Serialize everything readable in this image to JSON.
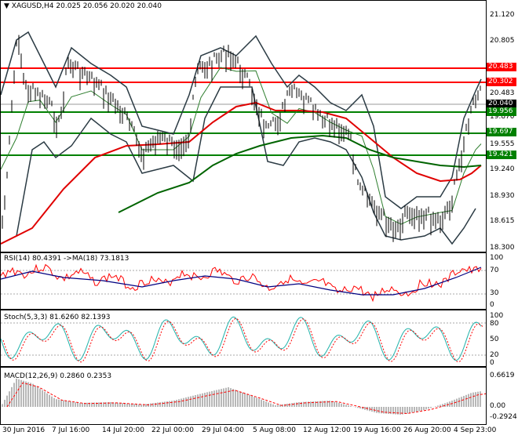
{
  "header": {
    "symbol": "XAGUSD,H4",
    "ohlc": "20.025 20.056 20.020 20.040",
    "menu_arrow": "▼"
  },
  "main": {
    "price_scale": [
      "21.120",
      "20.805",
      "20.483",
      "20.302",
      "20.040",
      "19.956",
      "19.870",
      "19.697",
      "19.555",
      "19.421",
      "19.240",
      "18.930",
      "18.615",
      "18.300"
    ],
    "levels": [
      {
        "label": "20.483",
        "color": "#ff0000"
      },
      {
        "label": "20.302",
        "color": "#ff0000"
      },
      {
        "label": "20.040",
        "color": "#000000"
      },
      {
        "label": "19.956",
        "color": "#008000"
      },
      {
        "label": "19.697",
        "color": "#008000"
      },
      {
        "label": "19.421",
        "color": "#008000"
      }
    ]
  },
  "rsi": {
    "label": "RSI(14) 80.4391 ->MA(18) 73.1813",
    "scale": [
      "100",
      "70",
      "30",
      "0"
    ]
  },
  "stoch": {
    "label": "Stoch(5,3,3) 81.6260 82.1393",
    "scale": [
      "100",
      "80",
      "50",
      "20",
      "0"
    ]
  },
  "macd": {
    "label": "MACD(12,26,9) 0.2860 0.2353",
    "scale": [
      "0.6619",
      "0.00",
      "-0.2924"
    ]
  },
  "time_axis": [
    "30 Jun 2016",
    "7 Jul 16:00",
    "14 Jul 20:00",
    "22 Jul 00:00",
    "29 Jul 04:00",
    "5 Aug 08:00",
    "12 Aug 12:00",
    "19 Aug 16:00",
    "26 Aug 20:00",
    "4 Sep 23:00"
  ],
  "colors": {
    "resistance": "#ff0000",
    "support": "#008000",
    "ma_red": "#e00000",
    "ma_green": "#006400",
    "bands": "#2b3b44",
    "rsi": "#ff0000",
    "rsi_ma": "#000080",
    "stoch_main": "#20b2aa",
    "stoch_signal": "#ff0000",
    "macd_hist": "#a0a0a0",
    "macd_signal": "#ff0000"
  }
}
